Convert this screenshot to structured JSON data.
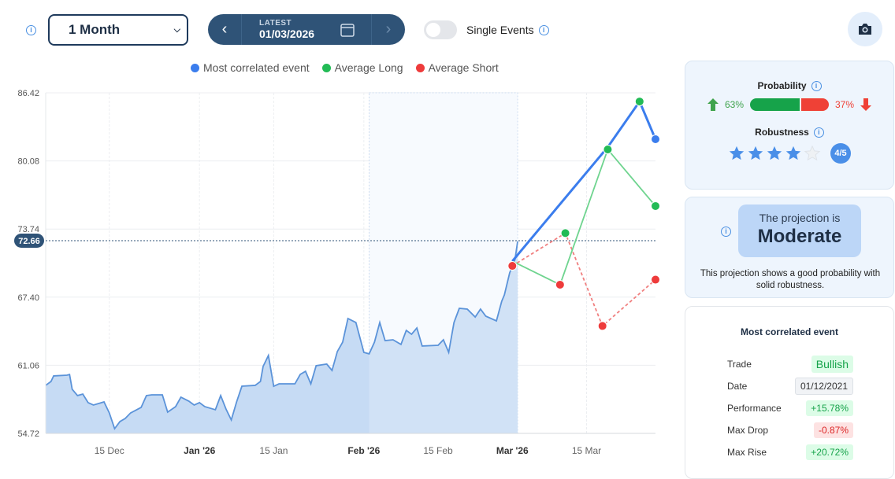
{
  "toolbar": {
    "range_select": "1 Month",
    "date_label": "LATEST",
    "date_value": "01/03/2026",
    "single_events_label": "Single Events",
    "single_events_on": false
  },
  "legend": [
    {
      "label": "Most correlated event",
      "color": "#3b7ded"
    },
    {
      "label": "Average Long",
      "color": "#22bb55"
    },
    {
      "label": "Average Short",
      "color": "#ee3b3b"
    }
  ],
  "probability": {
    "title": "Probability",
    "up": "63%",
    "down": "37%",
    "up_fraction": 0.63,
    "up_color": "#16a34a",
    "down_color": "#ef4136"
  },
  "robustness": {
    "title": "Robustness",
    "stars": 4,
    "max": 5,
    "badge": "4/5"
  },
  "projection": {
    "prefix": "The projection is",
    "level": "Moderate",
    "description": "This projection shows a good probability with solid robustness."
  },
  "event": {
    "title": "Most correlated event",
    "rows": [
      {
        "label": "Trade",
        "value": "Bullish",
        "tone": "green"
      },
      {
        "label": "Date",
        "value": "01/12/2021",
        "tone": "gray"
      },
      {
        "label": "Performance",
        "value": "+15.78%",
        "tone": "green"
      },
      {
        "label": "Max Drop",
        "value": "-0.87%",
        "tone": "red"
      },
      {
        "label": "Max Rise",
        "value": "+20.72%",
        "tone": "green"
      }
    ]
  },
  "chart_data": {
    "type": "line",
    "xlim": [
      "2025-12-03",
      "2026-03-28"
    ],
    "ylim": [
      54.72,
      86.42
    ],
    "yticks": [
      "54.72",
      "61.06",
      "67.40",
      "73.74",
      "80.08",
      "86.42"
    ],
    "xticks": [
      {
        "date": "2025-12-15",
        "label": "15 Dec",
        "bold": false
      },
      {
        "date": "2026-01-01",
        "label": "Jan '26",
        "bold": true
      },
      {
        "date": "2026-01-15",
        "label": "15 Jan",
        "bold": false
      },
      {
        "date": "2026-02-01",
        "label": "Feb '26",
        "bold": true
      },
      {
        "date": "2026-02-15",
        "label": "15 Feb",
        "bold": false
      },
      {
        "date": "2026-03-01",
        "label": "Mar '26",
        "bold": true
      },
      {
        "date": "2026-03-15",
        "label": "15 Mar",
        "bold": false
      }
    ],
    "current_price": "72.66",
    "highlight_range": [
      "2026-02-02",
      "2026-03-02"
    ],
    "price": [
      [
        "2025-12-03",
        59.19
      ],
      [
        "2025-12-04",
        59.55
      ],
      [
        "2025-12-04T12:00",
        60.07
      ],
      [
        "2025-12-07",
        60.14
      ],
      [
        "2025-12-07T12:00",
        60.2
      ],
      [
        "2025-12-08",
        58.82
      ],
      [
        "2025-12-09",
        58.24
      ],
      [
        "2025-12-10",
        58.38
      ],
      [
        "2025-12-11",
        57.58
      ],
      [
        "2025-12-12",
        57.36
      ],
      [
        "2025-12-14",
        57.65
      ],
      [
        "2025-12-15",
        56.62
      ],
      [
        "2025-12-16",
        55.16
      ],
      [
        "2025-12-17",
        55.82
      ],
      [
        "2025-12-18",
        56.11
      ],
      [
        "2025-12-19",
        56.62
      ],
      [
        "2025-12-21",
        57.14
      ],
      [
        "2025-12-22",
        58.24
      ],
      [
        "2025-12-23",
        58.31
      ],
      [
        "2025-12-25",
        58.31
      ],
      [
        "2025-12-26",
        56.7
      ],
      [
        "2025-12-27T12:00",
        57.21
      ],
      [
        "2025-12-28T12:00",
        58.09
      ],
      [
        "2025-12-30",
        57.72
      ],
      [
        "2025-12-31",
        57.36
      ],
      [
        "2026-01-01",
        57.58
      ],
      [
        "2026-01-02",
        57.21
      ],
      [
        "2026-01-04",
        56.92
      ],
      [
        "2026-01-05",
        58.24
      ],
      [
        "2026-01-06",
        56.99
      ],
      [
        "2026-01-07",
        55.97
      ],
      [
        "2026-01-08",
        57.65
      ],
      [
        "2026-01-09",
        59.11
      ],
      [
        "2026-01-11T12:00",
        59.19
      ],
      [
        "2026-01-12T12:00",
        59.55
      ],
      [
        "2026-01-13",
        60.95
      ],
      [
        "2026-01-14",
        61.97
      ],
      [
        "2026-01-15",
        59.11
      ],
      [
        "2026-01-16",
        59.33
      ],
      [
        "2026-01-19",
        59.33
      ],
      [
        "2026-01-20",
        60.21
      ],
      [
        "2026-01-21",
        60.5
      ],
      [
        "2026-01-22",
        59.33
      ],
      [
        "2026-01-23",
        61.02
      ],
      [
        "2026-01-25",
        61.17
      ],
      [
        "2026-01-26",
        60.58
      ],
      [
        "2026-01-27",
        62.34
      ],
      [
        "2026-01-28",
        63.21
      ],
      [
        "2026-01-29",
        65.41
      ],
      [
        "2026-01-30T12:00",
        65.04
      ],
      [
        "2026-02-01",
        62.26
      ],
      [
        "2026-02-02",
        62.12
      ],
      [
        "2026-02-03",
        63.21
      ],
      [
        "2026-02-04",
        65.04
      ],
      [
        "2026-02-05",
        63.36
      ],
      [
        "2026-02-06T12:00",
        63.43
      ],
      [
        "2026-02-08",
        63.0
      ],
      [
        "2026-02-09",
        64.31
      ],
      [
        "2026-02-10",
        63.95
      ],
      [
        "2026-02-11",
        64.53
      ],
      [
        "2026-02-12",
        62.85
      ],
      [
        "2026-02-15",
        62.92
      ],
      [
        "2026-02-16",
        63.43
      ],
      [
        "2026-02-17",
        62.26
      ],
      [
        "2026-02-18",
        65.04
      ],
      [
        "2026-02-19",
        66.36
      ],
      [
        "2026-02-20T12:00",
        66.29
      ],
      [
        "2026-02-22",
        65.55
      ],
      [
        "2026-02-23",
        66.29
      ],
      [
        "2026-02-24",
        65.63
      ],
      [
        "2026-02-26",
        65.19
      ],
      [
        "2026-02-27",
        67.02
      ],
      [
        "2026-02-27T12:00",
        67.61
      ],
      [
        "2026-02-28T12:00",
        69.66
      ],
      [
        "2026-03-01T12:00",
        70.9
      ],
      [
        "2026-03-02",
        72.58
      ]
    ],
    "series": [
      {
        "name": "Most correlated event",
        "color": "#3b7ded",
        "dashed": false,
        "points": [
          [
            "2026-03-01",
            70.75,
            null
          ],
          [
            "2026-03-19",
            81.37,
            null
          ],
          [
            "2026-03-25",
            85.61,
            "#22bb55"
          ],
          [
            "2026-03-28",
            82.1,
            "#3b7ded"
          ]
        ]
      },
      {
        "name": "Average Long",
        "color": "#6fd48f",
        "dashed": false,
        "points": [
          [
            "2026-03-01",
            70.75,
            null
          ],
          [
            "2026-03-10",
            68.56,
            "#ee3b3b"
          ],
          [
            "2026-03-19",
            81.15,
            "#22bb55"
          ],
          [
            "2026-03-28",
            75.88,
            "#22bb55"
          ]
        ]
      },
      {
        "name": "Average Short",
        "color": "#f08080",
        "dashed": true,
        "points": [
          [
            "2026-03-01",
            70.31,
            "#ee3b3b"
          ],
          [
            "2026-03-11",
            73.36,
            "#22bb55"
          ],
          [
            "2026-03-18",
            64.72,
            "#ee3b3b"
          ],
          [
            "2026-03-28",
            69.03,
            "#ee3b3b"
          ]
        ]
      }
    ]
  }
}
